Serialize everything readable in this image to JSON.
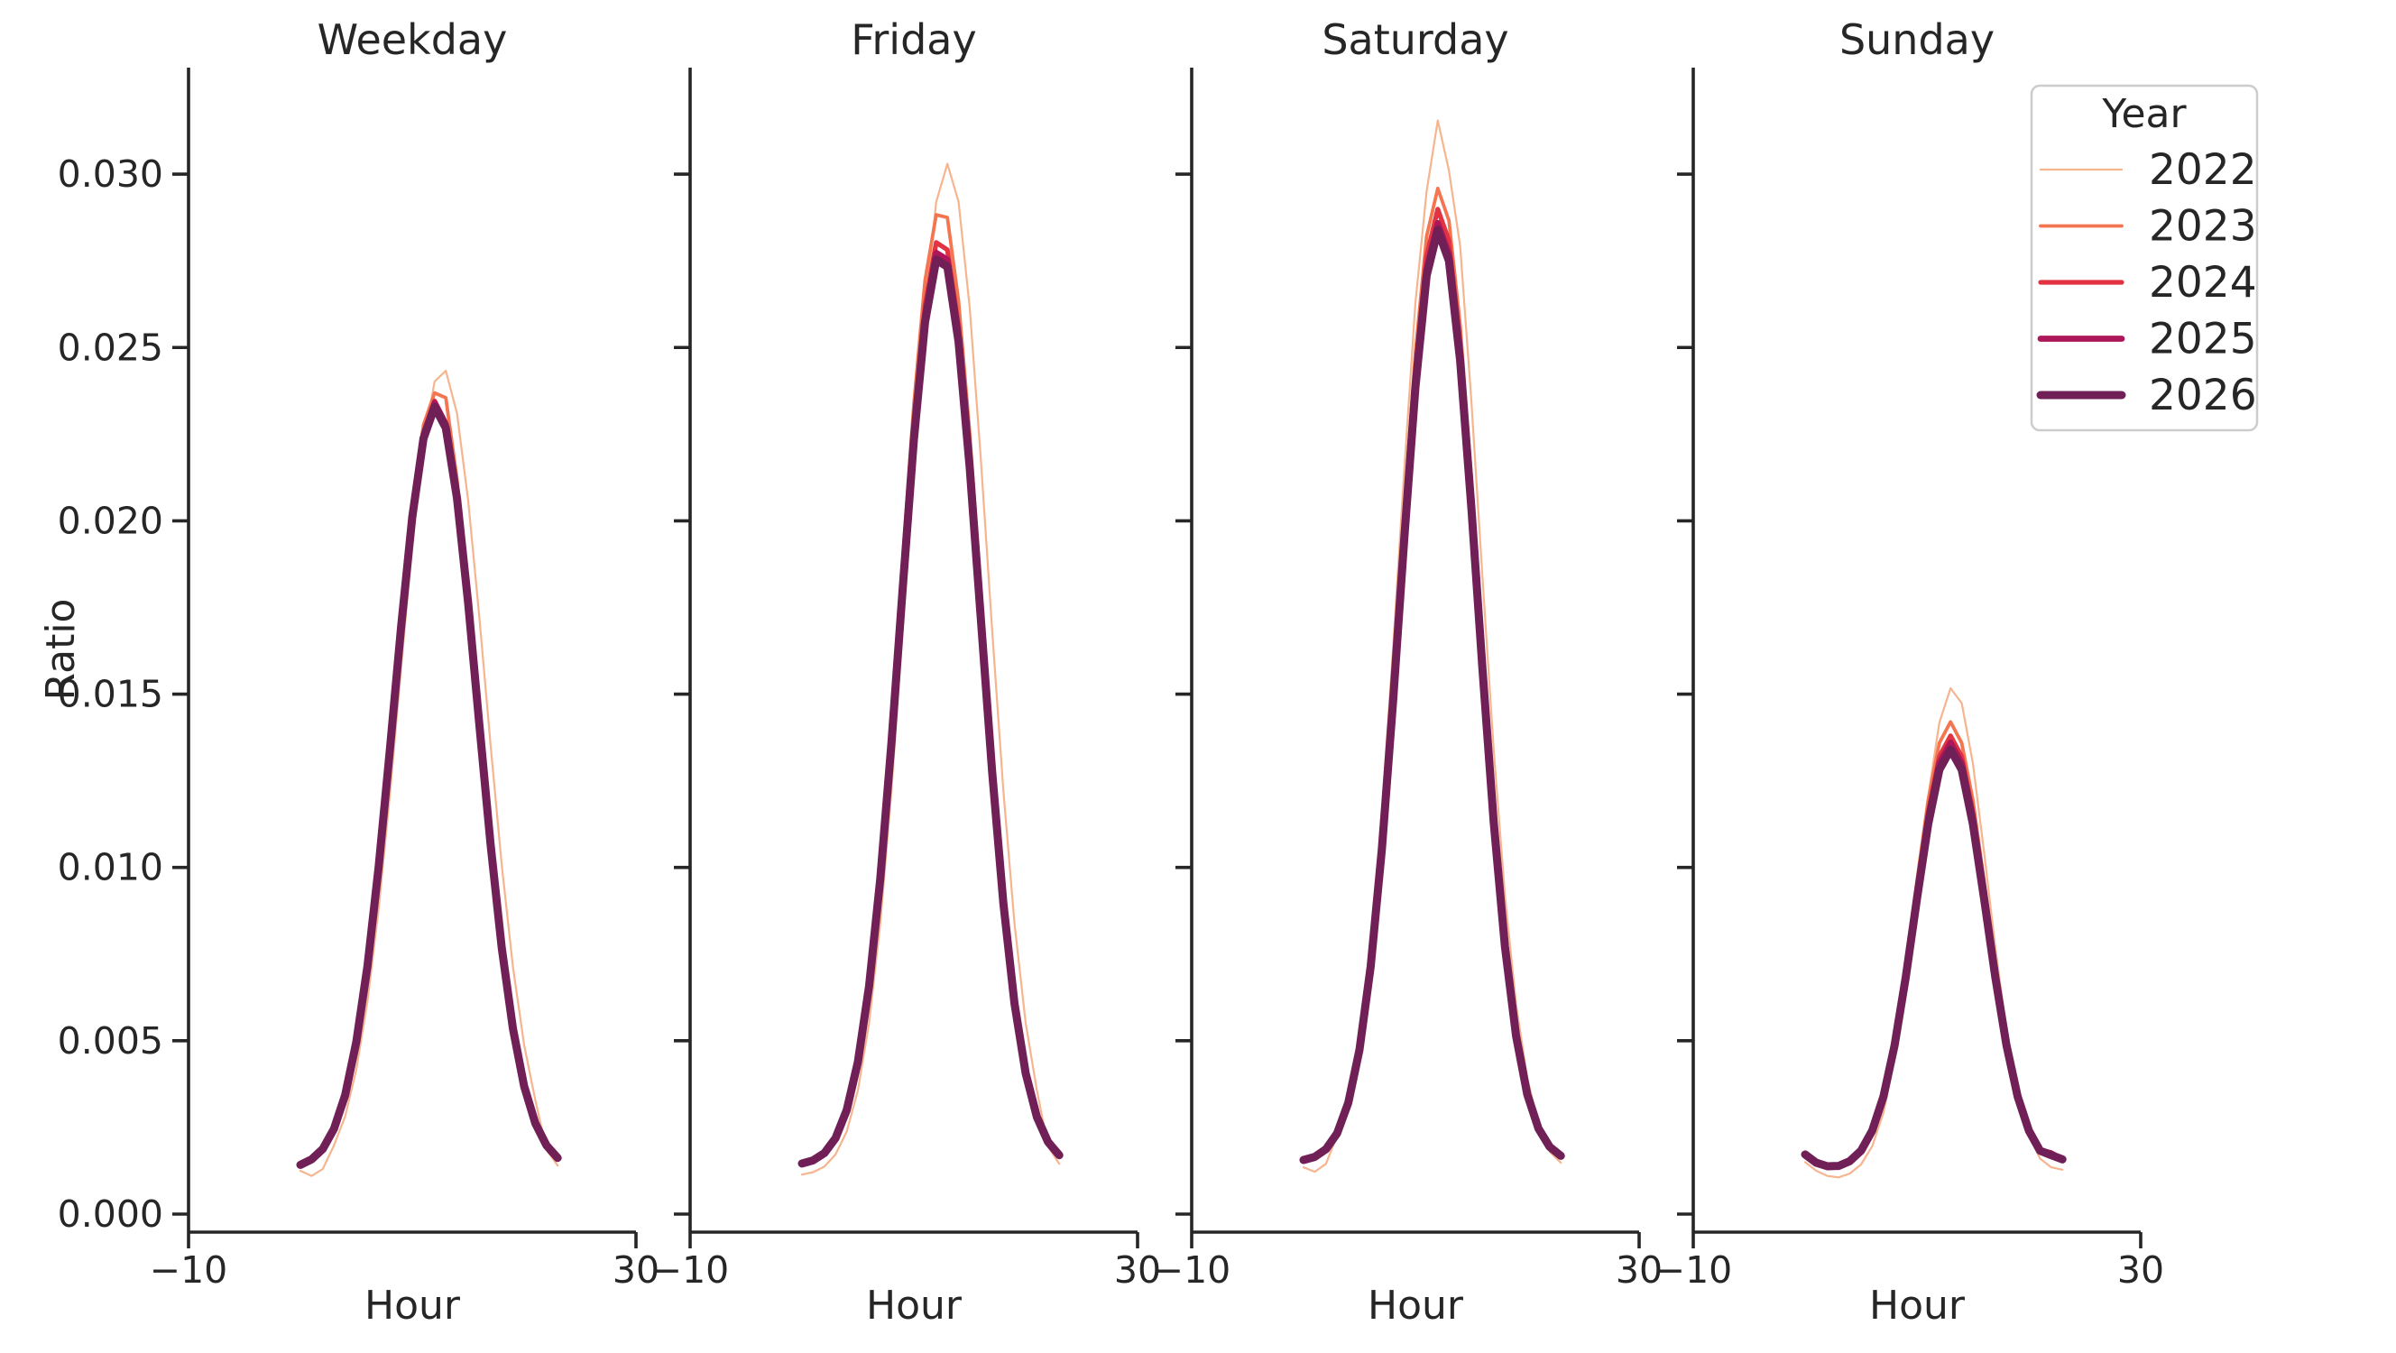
{
  "colors": {
    "background": "#ffffff",
    "text": "#262626",
    "spine": "#262626",
    "legend_border": "#cccccc"
  },
  "chart_data": {
    "type": "line",
    "xlabel": "Hour",
    "ylabel": "Ratio",
    "xlim": [
      -10,
      30
    ],
    "ylim": [
      -0.0005,
      0.0331
    ],
    "grid": false,
    "x_ticks": [
      -10,
      30
    ],
    "x_tick_labels": [
      "−10",
      "30"
    ],
    "y_ticks": [
      0.0,
      0.005,
      0.01,
      0.015,
      0.02,
      0.025,
      0.03
    ],
    "y_tick_labels": [
      "0.000",
      "0.005",
      "0.010",
      "0.015",
      "0.020",
      "0.025",
      "0.030"
    ],
    "hours": [
      0,
      1,
      2,
      3,
      4,
      5,
      6,
      7,
      8,
      9,
      10,
      11,
      12,
      13,
      14,
      15,
      16,
      17,
      18,
      19,
      20,
      21,
      22,
      23
    ],
    "legend": {
      "title": "Year",
      "position": "upper right"
    },
    "years": [
      {
        "label": "2022",
        "color": "#f6b48f",
        "line_width": 2.2
      },
      {
        "label": "2023",
        "color": "#f37651",
        "line_width": 3.8
      },
      {
        "label": "2024",
        "color": "#e13342",
        "line_width": 5.2
      },
      {
        "label": "2025",
        "color": "#ad1759",
        "line_width": 6.8
      },
      {
        "label": "2026",
        "color": "#701f57",
        "line_width": 9.0
      }
    ],
    "panels": [
      {
        "title": "Weekday",
        "series": {
          "2022": [
            0.00125,
            0.0011,
            0.0013,
            0.00198,
            0.00282,
            0.00417,
            0.00615,
            0.00882,
            0.01211,
            0.01575,
            0.0193,
            0.02223,
            0.02402,
            0.02433,
            0.0231,
            0.02058,
            0.01721,
            0.01354,
            0.01007,
            0.00713,
            0.00488,
            0.00329,
            0.00185,
            0.0014
          ],
          "2023": [
            0.00142,
            0.00158,
            0.0019,
            0.00248,
            0.00347,
            0.00503,
            0.00727,
            0.01018,
            0.01362,
            0.01722,
            0.02045,
            0.02276,
            0.02369,
            0.02355,
            0.0212,
            0.01791,
            0.01434,
            0.01084,
            0.0078,
            0.00542,
            0.00374,
            0.00264,
            0.00199,
            0.00163
          ],
          "2024": [
            0.00142,
            0.00158,
            0.00189,
            0.00246,
            0.00345,
            0.005,
            0.0072,
            0.0101,
            0.01351,
            0.01706,
            0.02024,
            0.02252,
            0.02346,
            0.02283,
            0.02079,
            0.01772,
            0.0142,
            0.01075,
            0.00771,
            0.00538,
            0.00371,
            0.00262,
            0.00198,
            0.00162
          ],
          "2025": [
            0.00142,
            0.00158,
            0.00188,
            0.00246,
            0.00344,
            0.00498,
            0.00719,
            0.01007,
            0.01345,
            0.017,
            0.0202,
            0.02247,
            0.0234,
            0.02278,
            0.02074,
            0.0177,
            0.01417,
            0.01072,
            0.00771,
            0.00537,
            0.0037,
            0.00263,
            0.00198,
            0.00162
          ],
          "2026": [
            0.00142,
            0.00158,
            0.00188,
            0.00246,
            0.00343,
            0.00497,
            0.00716,
            0.01003,
            0.0134,
            0.01693,
            0.02011,
            0.02237,
            0.02329,
            0.02268,
            0.02065,
            0.01762,
            0.01411,
            0.01067,
            0.00768,
            0.00535,
            0.00369,
            0.00262,
            0.00198,
            0.00162
          ]
        }
      },
      {
        "title": "Friday",
        "series": {
          "2022": [
            0.00114,
            0.00121,
            0.00137,
            0.00172,
            0.00238,
            0.00357,
            0.00551,
            0.00838,
            0.01223,
            0.01685,
            0.02173,
            0.02613,
            0.0292,
            0.0303,
            0.0292,
            0.02613,
            0.02173,
            0.01685,
            0.01223,
            0.00838,
            0.00551,
            0.00357,
            0.00195,
            0.00145
          ],
          "2023": [
            0.00146,
            0.00156,
            0.00178,
            0.00223,
            0.00308,
            0.00454,
            0.00683,
            0.01008,
            0.0142,
            0.01885,
            0.02336,
            0.02693,
            0.02883,
            0.02875,
            0.02633,
            0.02251,
            0.01791,
            0.01332,
            0.00935,
            0.0063,
            0.00419,
            0.00287,
            0.00211,
            0.00172
          ],
          "2024": [
            0.00146,
            0.00155,
            0.00177,
            0.00221,
            0.00303,
            0.00445,
            0.00668,
            0.00983,
            0.01383,
            0.01834,
            0.02273,
            0.0262,
            0.02803,
            0.02782,
            0.02561,
            0.0219,
            0.01743,
            0.01298,
            0.00912,
            0.00616,
            0.00411,
            0.00282,
            0.00209,
            0.00171
          ],
          "2025": [
            0.00146,
            0.00155,
            0.00176,
            0.0022,
            0.00301,
            0.00442,
            0.00662,
            0.00973,
            0.01369,
            0.01815,
            0.02249,
            0.02592,
            0.02773,
            0.02753,
            0.02534,
            0.02167,
            0.01725,
            0.01285,
            0.00904,
            0.00611,
            0.00408,
            0.00281,
            0.00208,
            0.00171
          ],
          "2026": [
            0.00146,
            0.00155,
            0.00176,
            0.00219,
            0.003,
            0.00439,
            0.00658,
            0.00967,
            0.0136,
            0.01803,
            0.02233,
            0.02573,
            0.02753,
            0.02733,
            0.02516,
            0.02151,
            0.01713,
            0.01276,
            0.00898,
            0.00607,
            0.00406,
            0.0028,
            0.00208,
            0.0017
          ]
        }
      },
      {
        "title": "Saturday",
        "series": {
          "2022": [
            0.00135,
            0.00122,
            0.00145,
            0.00226,
            0.00332,
            0.00509,
            0.00781,
            0.0116,
            0.0163,
            0.02145,
            0.02629,
            0.0295,
            0.03155,
            0.0301,
            0.02793,
            0.02347,
            0.01834,
            0.01339,
            0.0092,
            0.00605,
            0.00392,
            0.00261,
            0.0018,
            0.00148
          ],
          "2023": [
            0.00156,
            0.00166,
            0.00189,
            0.00237,
            0.00328,
            0.00488,
            0.00739,
            0.01092,
            0.01537,
            0.02027,
            0.02485,
            0.02821,
            0.02959,
            0.02866,
            0.02565,
            0.02124,
            0.01633,
            0.01175,
            0.00801,
            0.0053,
            0.00354,
            0.00251,
            0.00196,
            0.00169
          ],
          "2024": [
            0.00156,
            0.00166,
            0.00188,
            0.00235,
            0.00325,
            0.00481,
            0.00726,
            0.01072,
            0.01507,
            0.01987,
            0.02435,
            0.02764,
            0.02899,
            0.02808,
            0.02513,
            0.02081,
            0.01602,
            0.01153,
            0.00787,
            0.00522,
            0.0035,
            0.00249,
            0.00195,
            0.00169
          ],
          "2025": [
            0.00156,
            0.00165,
            0.00187,
            0.00234,
            0.00322,
            0.00476,
            0.00718,
            0.01059,
            0.01487,
            0.0196,
            0.02402,
            0.02726,
            0.02859,
            0.02769,
            0.02479,
            0.02053,
            0.01581,
            0.01138,
            0.00778,
            0.00517,
            0.00347,
            0.00247,
            0.00194,
            0.00168
          ],
          "2026": [
            0.00156,
            0.00165,
            0.00187,
            0.00233,
            0.00321,
            0.00474,
            0.00714,
            0.01052,
            0.01478,
            0.01947,
            0.02385,
            0.02707,
            0.02839,
            0.0275,
            0.02462,
            0.02039,
            0.0157,
            0.01131,
            0.00773,
            0.00514,
            0.00345,
            0.00247,
            0.00194,
            0.00168
          ]
        }
      },
      {
        "title": "Sunday",
        "series": {
          "2022": [
            0.0015,
            0.00125,
            0.0011,
            0.00106,
            0.00117,
            0.00143,
            0.00196,
            0.00292,
            0.00448,
            0.00667,
            0.00934,
            0.01204,
            0.01418,
            0.01517,
            0.01474,
            0.013,
            0.01044,
            0.0077,
            0.00528,
            0.00347,
            0.00228,
            0.0016,
            0.00135,
            0.00128
          ],
          "2023": [
            0.00172,
            0.00148,
            0.00138,
            0.0014,
            0.00155,
            0.00187,
            0.00248,
            0.00352,
            0.00511,
            0.0072,
            0.00961,
            0.01194,
            0.01359,
            0.0142,
            0.01359,
            0.01194,
            0.00961,
            0.0072,
            0.00511,
            0.00352,
            0.00248,
            0.00187,
            0.00177,
            0.00159
          ],
          "2024": [
            0.00172,
            0.00148,
            0.00138,
            0.00139,
            0.00154,
            0.00185,
            0.00244,
            0.00346,
            0.00499,
            0.00702,
            0.00935,
            0.01159,
            0.0132,
            0.0138,
            0.0132,
            0.01159,
            0.00935,
            0.00702,
            0.00499,
            0.00346,
            0.00244,
            0.00185,
            0.00176,
            0.00158
          ],
          "2025": [
            0.00172,
            0.00148,
            0.00138,
            0.00139,
            0.00154,
            0.00184,
            0.00242,
            0.00342,
            0.00493,
            0.00693,
            0.00923,
            0.01142,
            0.01301,
            0.0136,
            0.01301,
            0.01142,
            0.00923,
            0.00693,
            0.00493,
            0.00342,
            0.00242,
            0.00184,
            0.00175,
            0.00158
          ],
          "2026": [
            0.00172,
            0.00148,
            0.00138,
            0.00139,
            0.00153,
            0.00183,
            0.00241,
            0.00339,
            0.00487,
            0.00684,
            0.0091,
            0.01125,
            0.01282,
            0.0134,
            0.01282,
            0.01125,
            0.0091,
            0.00684,
            0.00487,
            0.00339,
            0.00241,
            0.00183,
            0.0017,
            0.00158
          ]
        }
      }
    ]
  }
}
